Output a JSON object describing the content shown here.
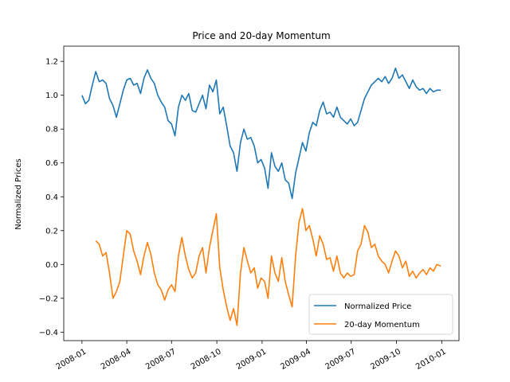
{
  "chart_data": {
    "type": "line",
    "title": "Price and 20-day Momentum",
    "xlabel": "",
    "ylabel": "Normalized Prices",
    "xlim": [
      "2007-11-25",
      "2010-02-05"
    ],
    "ylim": [
      -0.45,
      1.29
    ],
    "grid": false,
    "legend_position": "lower-right",
    "x_ticks": [
      "2008-01",
      "2008-04",
      "2008-07",
      "2008-10",
      "2009-01",
      "2009-04",
      "2009-07",
      "2009-10",
      "2010-01"
    ],
    "y_ticks": [
      "−0.4",
      "−0.2",
      "0.0",
      "0.2",
      "0.4",
      "0.6",
      "0.8",
      "1.0",
      "1.2"
    ],
    "series": [
      {
        "name": "Normalized Price",
        "color": "#1f77b4",
        "points": [
          [
            "2008-01-01",
            1.0
          ],
          [
            "2008-01-08",
            0.95
          ],
          [
            "2008-01-15",
            0.97
          ],
          [
            "2008-01-22",
            1.06
          ],
          [
            "2008-01-29",
            1.14
          ],
          [
            "2008-02-05",
            1.08
          ],
          [
            "2008-02-12",
            1.09
          ],
          [
            "2008-02-19",
            1.07
          ],
          [
            "2008-02-26",
            0.98
          ],
          [
            "2008-03-04",
            0.94
          ],
          [
            "2008-03-11",
            0.87
          ],
          [
            "2008-03-18",
            0.95
          ],
          [
            "2008-03-25",
            1.03
          ],
          [
            "2008-04-01",
            1.09
          ],
          [
            "2008-04-08",
            1.1
          ],
          [
            "2008-04-15",
            1.06
          ],
          [
            "2008-04-22",
            1.07
          ],
          [
            "2008-04-29",
            1.01
          ],
          [
            "2008-05-06",
            1.1
          ],
          [
            "2008-05-13",
            1.15
          ],
          [
            "2008-05-20",
            1.1
          ],
          [
            "2008-05-27",
            1.07
          ],
          [
            "2008-06-03",
            1.0
          ],
          [
            "2008-06-10",
            0.96
          ],
          [
            "2008-06-17",
            0.93
          ],
          [
            "2008-06-24",
            0.85
          ],
          [
            "2008-07-01",
            0.83
          ],
          [
            "2008-07-08",
            0.76
          ],
          [
            "2008-07-15",
            0.93
          ],
          [
            "2008-07-22",
            1.0
          ],
          [
            "2008-07-29",
            0.97
          ],
          [
            "2008-08-05",
            1.01
          ],
          [
            "2008-08-12",
            0.91
          ],
          [
            "2008-08-19",
            0.9
          ],
          [
            "2008-08-26",
            0.95
          ],
          [
            "2008-09-02",
            1.0
          ],
          [
            "2008-09-09",
            0.92
          ],
          [
            "2008-09-16",
            1.06
          ],
          [
            "2008-09-23",
            1.02
          ],
          [
            "2008-09-30",
            1.09
          ],
          [
            "2008-10-07",
            0.89
          ],
          [
            "2008-10-14",
            0.93
          ],
          [
            "2008-10-21",
            0.82
          ],
          [
            "2008-10-28",
            0.7
          ],
          [
            "2008-11-04",
            0.66
          ],
          [
            "2008-11-11",
            0.55
          ],
          [
            "2008-11-18",
            0.72
          ],
          [
            "2008-11-25",
            0.8
          ],
          [
            "2008-12-02",
            0.74
          ],
          [
            "2008-12-09",
            0.75
          ],
          [
            "2008-12-16",
            0.7
          ],
          [
            "2008-12-23",
            0.6
          ],
          [
            "2008-12-30",
            0.62
          ],
          [
            "2009-01-06",
            0.57
          ],
          [
            "2009-01-13",
            0.45
          ],
          [
            "2009-01-20",
            0.66
          ],
          [
            "2009-01-27",
            0.58
          ],
          [
            "2009-02-03",
            0.55
          ],
          [
            "2009-02-10",
            0.6
          ],
          [
            "2009-02-17",
            0.5
          ],
          [
            "2009-02-24",
            0.48
          ],
          [
            "2009-03-03",
            0.39
          ],
          [
            "2009-03-10",
            0.54
          ],
          [
            "2009-03-17",
            0.63
          ],
          [
            "2009-03-24",
            0.72
          ],
          [
            "2009-03-31",
            0.67
          ],
          [
            "2009-04-07",
            0.78
          ],
          [
            "2009-04-14",
            0.84
          ],
          [
            "2009-04-21",
            0.82
          ],
          [
            "2009-04-28",
            0.91
          ],
          [
            "2009-05-05",
            0.96
          ],
          [
            "2009-05-12",
            0.89
          ],
          [
            "2009-05-19",
            0.9
          ],
          [
            "2009-05-26",
            0.87
          ],
          [
            "2009-06-02",
            0.93
          ],
          [
            "2009-06-09",
            0.87
          ],
          [
            "2009-06-16",
            0.85
          ],
          [
            "2009-06-23",
            0.83
          ],
          [
            "2009-06-30",
            0.86
          ],
          [
            "2009-07-07",
            0.82
          ],
          [
            "2009-07-14",
            0.84
          ],
          [
            "2009-07-21",
            0.91
          ],
          [
            "2009-07-28",
            0.98
          ],
          [
            "2009-08-04",
            1.02
          ],
          [
            "2009-08-11",
            1.06
          ],
          [
            "2009-08-18",
            1.08
          ],
          [
            "2009-08-25",
            1.1
          ],
          [
            "2009-09-01",
            1.08
          ],
          [
            "2009-09-08",
            1.11
          ],
          [
            "2009-09-15",
            1.07
          ],
          [
            "2009-09-22",
            1.1
          ],
          [
            "2009-09-29",
            1.16
          ],
          [
            "2009-10-06",
            1.1
          ],
          [
            "2009-10-13",
            1.12
          ],
          [
            "2009-10-20",
            1.08
          ],
          [
            "2009-10-27",
            1.04
          ],
          [
            "2009-11-03",
            1.09
          ],
          [
            "2009-11-10",
            1.05
          ],
          [
            "2009-11-17",
            1.03
          ],
          [
            "2009-11-24",
            1.04
          ],
          [
            "2009-12-01",
            1.01
          ],
          [
            "2009-12-08",
            1.04
          ],
          [
            "2009-12-15",
            1.02
          ],
          [
            "2009-12-22",
            1.03
          ],
          [
            "2009-12-30",
            1.03
          ]
        ]
      },
      {
        "name": "20-day Momentum",
        "color": "#ff7f0e",
        "points": [
          [
            "2008-01-29",
            0.14
          ],
          [
            "2008-02-05",
            0.12
          ],
          [
            "2008-02-12",
            0.05
          ],
          [
            "2008-02-19",
            0.07
          ],
          [
            "2008-02-26",
            -0.05
          ],
          [
            "2008-03-04",
            -0.2
          ],
          [
            "2008-03-11",
            -0.16
          ],
          [
            "2008-03-18",
            -0.1
          ],
          [
            "2008-03-25",
            0.05
          ],
          [
            "2008-04-01",
            0.2
          ],
          [
            "2008-04-08",
            0.18
          ],
          [
            "2008-04-15",
            0.08
          ],
          [
            "2008-04-22",
            0.02
          ],
          [
            "2008-04-29",
            -0.06
          ],
          [
            "2008-05-06",
            0.05
          ],
          [
            "2008-05-13",
            0.13
          ],
          [
            "2008-05-20",
            0.06
          ],
          [
            "2008-05-27",
            -0.05
          ],
          [
            "2008-06-03",
            -0.12
          ],
          [
            "2008-06-10",
            -0.15
          ],
          [
            "2008-06-17",
            -0.21
          ],
          [
            "2008-06-24",
            -0.15
          ],
          [
            "2008-07-01",
            -0.12
          ],
          [
            "2008-07-08",
            -0.16
          ],
          [
            "2008-07-15",
            0.05
          ],
          [
            "2008-07-22",
            0.16
          ],
          [
            "2008-07-29",
            0.05
          ],
          [
            "2008-08-05",
            -0.03
          ],
          [
            "2008-08-12",
            -0.08
          ],
          [
            "2008-08-19",
            -0.05
          ],
          [
            "2008-08-26",
            0.05
          ],
          [
            "2008-09-02",
            0.1
          ],
          [
            "2008-09-09",
            -0.05
          ],
          [
            "2008-09-16",
            0.1
          ],
          [
            "2008-09-23",
            0.2
          ],
          [
            "2008-09-30",
            0.3
          ],
          [
            "2008-10-07",
            -0.02
          ],
          [
            "2008-10-14",
            -0.15
          ],
          [
            "2008-10-21",
            -0.25
          ],
          [
            "2008-10-28",
            -0.33
          ],
          [
            "2008-11-04",
            -0.26
          ],
          [
            "2008-11-11",
            -0.36
          ],
          [
            "2008-11-18",
            -0.05
          ],
          [
            "2008-11-25",
            0.1
          ],
          [
            "2008-12-02",
            0.02
          ],
          [
            "2008-12-09",
            -0.05
          ],
          [
            "2008-12-16",
            -0.02
          ],
          [
            "2008-12-23",
            -0.14
          ],
          [
            "2008-12-30",
            -0.08
          ],
          [
            "2009-01-06",
            -0.1
          ],
          [
            "2009-01-13",
            -0.2
          ],
          [
            "2009-01-20",
            0.05
          ],
          [
            "2009-01-27",
            -0.05
          ],
          [
            "2009-02-03",
            -0.1
          ],
          [
            "2009-02-10",
            0.04
          ],
          [
            "2009-02-17",
            -0.1
          ],
          [
            "2009-02-24",
            -0.18
          ],
          [
            "2009-03-03",
            -0.25
          ],
          [
            "2009-03-10",
            0.05
          ],
          [
            "2009-03-17",
            0.25
          ],
          [
            "2009-03-24",
            0.33
          ],
          [
            "2009-03-31",
            0.2
          ],
          [
            "2009-04-07",
            0.23
          ],
          [
            "2009-04-14",
            0.15
          ],
          [
            "2009-04-21",
            0.05
          ],
          [
            "2009-04-28",
            0.17
          ],
          [
            "2009-05-05",
            0.12
          ],
          [
            "2009-05-12",
            0.03
          ],
          [
            "2009-05-19",
            0.04
          ],
          [
            "2009-05-26",
            -0.04
          ],
          [
            "2009-06-02",
            0.05
          ],
          [
            "2009-06-09",
            -0.05
          ],
          [
            "2009-06-16",
            -0.08
          ],
          [
            "2009-06-23",
            -0.05
          ],
          [
            "2009-06-30",
            -0.07
          ],
          [
            "2009-07-07",
            -0.06
          ],
          [
            "2009-07-14",
            0.08
          ],
          [
            "2009-07-21",
            0.12
          ],
          [
            "2009-07-28",
            0.23
          ],
          [
            "2009-08-04",
            0.19
          ],
          [
            "2009-08-11",
            0.1
          ],
          [
            "2009-08-18",
            0.12
          ],
          [
            "2009-08-25",
            0.05
          ],
          [
            "2009-09-01",
            0.02
          ],
          [
            "2009-09-08",
            0.0
          ],
          [
            "2009-09-15",
            -0.05
          ],
          [
            "2009-09-22",
            0.02
          ],
          [
            "2009-09-29",
            0.08
          ],
          [
            "2009-10-06",
            0.05
          ],
          [
            "2009-10-13",
            -0.02
          ],
          [
            "2009-10-20",
            0.02
          ],
          [
            "2009-10-27",
            -0.07
          ],
          [
            "2009-11-03",
            -0.04
          ],
          [
            "2009-11-10",
            -0.08
          ],
          [
            "2009-11-17",
            -0.05
          ],
          [
            "2009-11-24",
            -0.03
          ],
          [
            "2009-12-01",
            -0.06
          ],
          [
            "2009-12-08",
            -0.02
          ],
          [
            "2009-12-15",
            -0.04
          ],
          [
            "2009-12-22",
            0.0
          ],
          [
            "2009-12-30",
            -0.01
          ]
        ]
      }
    ]
  }
}
